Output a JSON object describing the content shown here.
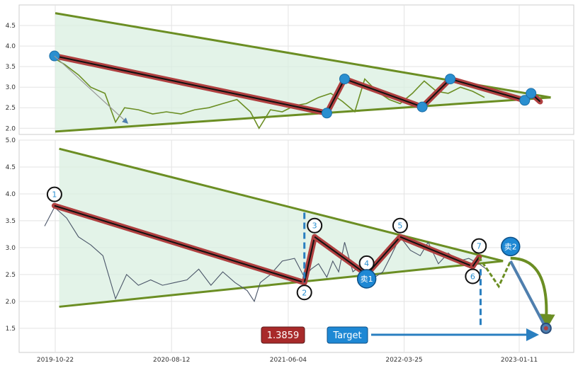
{
  "chart_data": [
    {
      "type": "line",
      "panel": "top",
      "ylim": [
        1.85,
        5.0
      ],
      "yticks": [
        "2.0",
        "2.5",
        "3.0",
        "3.5",
        "4.0",
        "4.5"
      ],
      "grid": true,
      "series": [
        {
          "x": [
            "2019-10-20",
            "2019-11-15",
            "2019-12-20",
            "2020-01-20",
            "2020-02-25",
            "2020-03-23",
            "2020-04-15",
            "2020-05-20",
            "2020-06-25",
            "2020-07-30",
            "2020-09-05",
            "2020-10-10",
            "2020-11-15",
            "2020-12-20",
            "2021-01-25",
            "2021-02-28",
            "2021-03-22",
            "2021-04-20",
            "2021-05-20",
            "2021-06-20",
            "2021-07-20",
            "2021-08-20",
            "2021-09-20",
            "2021-10-20",
            "2021-11-20",
            "2021-12-15",
            "2022-01-15",
            "2022-02-15",
            "2022-03-15",
            "2022-04-15",
            "2022-05-15",
            "2022-06-15",
            "2022-07-15",
            "2022-08-15",
            "2022-09-15",
            "2022-10-15"
          ],
          "values": [
            3.7,
            3.55,
            3.3,
            3.0,
            2.85,
            2.15,
            2.5,
            2.45,
            2.35,
            2.4,
            2.35,
            2.45,
            2.5,
            2.6,
            2.7,
            2.4,
            2.0,
            2.45,
            2.4,
            2.55,
            2.6,
            2.75,
            2.85,
            2.65,
            2.4,
            3.2,
            2.9,
            2.7,
            2.6,
            2.85,
            3.15,
            2.9,
            2.85,
            3.0,
            2.9,
            2.75
          ]
        }
      ],
      "triangle": {
        "upper": [
          {
            "x": "2019-10-22",
            "y": 4.8
          },
          {
            "x": "2023-04-01",
            "y": 2.75
          }
        ],
        "lower": [
          {
            "x": "2019-10-22",
            "y": 1.92
          },
          {
            "x": "2023-04-01",
            "y": 2.75
          }
        ]
      },
      "wave": [
        {
          "x": "2019-10-20",
          "y": 3.76
        },
        {
          "x": "2021-09-10",
          "y": 2.37
        },
        {
          "x": "2021-10-25",
          "y": 3.2
        },
        {
          "x": "2022-05-10",
          "y": 2.52
        },
        {
          "x": "2022-07-20",
          "y": 3.2
        },
        {
          "x": "2023-01-25",
          "y": 2.68
        },
        {
          "x": "2023-02-10",
          "y": 2.85
        },
        {
          "x": "2023-03-05",
          "y": 2.65
        }
      ]
    },
    {
      "type": "line",
      "panel": "bottom",
      "ylim": [
        1.05,
        5.0
      ],
      "yticks": [
        "1.5",
        "2.0",
        "2.5",
        "3.0",
        "3.5",
        "4.0",
        "4.5",
        "5.0"
      ],
      "xticks": [
        "2019-10-22",
        "2020-08-12",
        "2021-06-04",
        "2022-03-25",
        "2023-01-11"
      ],
      "grid": true,
      "series": [
        {
          "x": [
            "2019-09-25",
            "2019-10-20",
            "2019-11-20",
            "2019-12-20",
            "2020-01-20",
            "2020-02-20",
            "2020-03-23",
            "2020-04-20",
            "2020-05-20",
            "2020-06-20",
            "2020-07-20",
            "2020-08-20",
            "2020-09-20",
            "2020-10-20",
            "2020-11-20",
            "2020-12-20",
            "2021-01-20",
            "2021-02-20",
            "2021-03-10",
            "2021-03-25",
            "2021-04-20",
            "2021-05-20",
            "2021-06-20",
            "2021-07-15",
            "2021-08-01",
            "2021-08-20",
            "2021-09-10",
            "2021-09-25",
            "2021-10-10",
            "2021-10-25",
            "2021-11-15",
            "2021-12-10",
            "2022-01-10",
            "2022-01-30",
            "2022-02-20",
            "2022-03-15",
            "2022-04-10",
            "2022-05-05",
            "2022-05-25",
            "2022-06-20",
            "2022-07-15",
            "2022-08-10",
            "2022-09-05",
            "2022-10-01",
            "2022-10-20"
          ],
          "values": [
            3.4,
            3.75,
            3.55,
            3.2,
            3.05,
            2.85,
            2.05,
            2.5,
            2.3,
            2.4,
            2.3,
            2.35,
            2.4,
            2.6,
            2.3,
            2.55,
            2.35,
            2.2,
            2.0,
            2.35,
            2.5,
            2.75,
            2.8,
            2.45,
            2.6,
            2.7,
            2.45,
            2.75,
            2.55,
            3.1,
            2.55,
            2.7,
            2.45,
            2.55,
            2.85,
            3.2,
            2.95,
            2.85,
            3.1,
            2.7,
            2.9,
            2.75,
            2.8,
            2.7,
            2.6
          ]
        }
      ],
      "triangle": {
        "upper": [
          {
            "x": "2019-11-01",
            "y": 4.84
          },
          {
            "x": "2022-12-01",
            "y": 2.75
          }
        ],
        "lower": [
          {
            "x": "2019-11-01",
            "y": 1.9
          },
          {
            "x": "2022-12-01",
            "y": 2.75
          }
        ]
      },
      "wave": [
        {
          "x": "2019-10-20",
          "y": 3.78,
          "label": "1"
        },
        {
          "x": "2021-07-15",
          "y": 2.35,
          "label": "2"
        },
        {
          "x": "2021-08-10",
          "y": 3.2,
          "label": "3"
        },
        {
          "x": "2021-12-20",
          "y": 2.5,
          "label": "4"
        },
        {
          "x": "2022-03-15",
          "y": 3.2,
          "label": "5"
        },
        {
          "x": "2022-09-15",
          "y": 2.65,
          "label": "6"
        },
        {
          "x": "2022-10-01",
          "y": 2.82,
          "label": "7"
        }
      ],
      "projection": [
        {
          "x": "2022-10-01",
          "y": 2.82
        },
        {
          "x": "2022-11-20",
          "y": 2.28
        },
        {
          "x": "2022-12-20",
          "y": 2.75
        },
        {
          "x": "2023-03-20",
          "y": 1.5
        }
      ],
      "sell_points": [
        {
          "label": "卖1",
          "x": "2021-12-20",
          "y": 2.42
        },
        {
          "label": "卖2",
          "x": "2022-12-20",
          "y": 3.02
        }
      ],
      "target": {
        "label": "Target",
        "value": "1.3859",
        "x": "2023-03-20",
        "y": 1.5
      },
      "measure_lines": [
        {
          "x": "2021-07-15",
          "y_top": 3.65,
          "y_bottom": 2.35
        },
        {
          "x": "2022-10-05",
          "y_top": 2.6,
          "y_bottom": 1.5
        }
      ]
    }
  ]
}
